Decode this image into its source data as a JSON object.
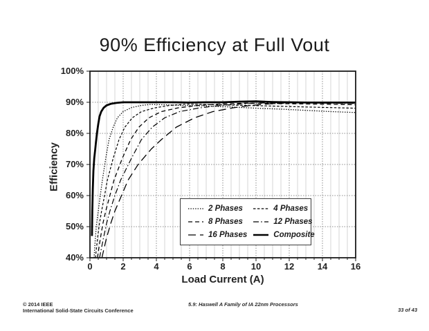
{
  "slide": {
    "title": "90% Efficiency at Full Vout",
    "footer": {
      "copyright": "© 2014 IEEE",
      "conference": "International Solid-State Circuits Conference",
      "paper": "5.9: Haswell A Family of IA 22nm Processors",
      "page": "33 of 43"
    }
  },
  "colors": {
    "curve": "#000000",
    "grid_minor": "#d5d5d5",
    "grid_major": "#8d8d8d",
    "axis_border": "#1a1a1a",
    "text": "#222222"
  },
  "chart_data": {
    "type": "line",
    "title": "90% Efficiency at Full Vout",
    "xlabel": "Load Current (A)",
    "ylabel": "Efficiency",
    "xlim": [
      0,
      16
    ],
    "ylim": [
      40,
      100
    ],
    "x_ticks": [
      0,
      2,
      4,
      6,
      8,
      10,
      12,
      14,
      16
    ],
    "x_minor_step": 0.5,
    "y_ticks": [
      40,
      50,
      60,
      70,
      80,
      90,
      100
    ],
    "y_tick_suffix": "%",
    "grid": "vertical minor light solid every 0.5A; major dotted every 2A and every 10%",
    "legend_position": "inside-bottom-center",
    "series": [
      {
        "name": "2 Phases",
        "dash": "1.4,2",
        "width": 1.3,
        "points": [
          [
            0.25,
            40
          ],
          [
            0.32,
            46
          ],
          [
            0.4,
            51
          ],
          [
            0.5,
            55
          ],
          [
            0.62,
            60
          ],
          [
            0.75,
            65
          ],
          [
            0.95,
            72
          ],
          [
            1.15,
            78
          ],
          [
            1.4,
            82
          ],
          [
            1.65,
            85
          ],
          [
            2.0,
            87
          ],
          [
            2.5,
            88.3
          ],
          [
            3.1,
            89
          ],
          [
            3.6,
            89.3
          ],
          [
            4.5,
            89.2
          ],
          [
            5.5,
            89
          ],
          [
            7.0,
            88.8
          ],
          [
            8.5,
            88.5
          ],
          [
            10.0,
            88.1
          ],
          [
            11.5,
            87.8
          ],
          [
            13.0,
            87.4
          ],
          [
            14.5,
            87
          ],
          [
            16.0,
            86.7
          ]
        ]
      },
      {
        "name": "4 Phases",
        "dash": "3.5,2.4",
        "width": 1.2,
        "points": [
          [
            0.33,
            40
          ],
          [
            0.45,
            46
          ],
          [
            0.57,
            51
          ],
          [
            0.7,
            55
          ],
          [
            0.88,
            60
          ],
          [
            1.05,
            65
          ],
          [
            1.4,
            72
          ],
          [
            1.75,
            78
          ],
          [
            2.1,
            82
          ],
          [
            2.55,
            85
          ],
          [
            3.1,
            87
          ],
          [
            3.9,
            88.2
          ],
          [
            4.8,
            89
          ],
          [
            5.8,
            89.4
          ],
          [
            7.0,
            89.3
          ],
          [
            8.5,
            89.1
          ],
          [
            10.0,
            88.9
          ],
          [
            11.5,
            88.7
          ],
          [
            13.0,
            88.5
          ],
          [
            14.5,
            88.3
          ],
          [
            16.0,
            88.1
          ]
        ]
      },
      {
        "name": "8 Phases",
        "dash": "6,4",
        "width": 1.3,
        "points": [
          [
            0.45,
            40
          ],
          [
            0.62,
            46
          ],
          [
            0.78,
            51
          ],
          [
            0.95,
            55
          ],
          [
            1.2,
            60
          ],
          [
            1.45,
            65
          ],
          [
            1.95,
            72
          ],
          [
            2.45,
            78
          ],
          [
            2.95,
            82
          ],
          [
            3.55,
            85
          ],
          [
            4.3,
            87
          ],
          [
            5.3,
            88.2
          ],
          [
            6.5,
            89
          ],
          [
            8.0,
            89.5
          ],
          [
            9.5,
            89.7
          ],
          [
            11.0,
            89.6
          ],
          [
            12.5,
            89.5
          ],
          [
            14.0,
            89.4
          ],
          [
            16.0,
            89.2
          ]
        ]
      },
      {
        "name": "12 Phases",
        "dash": "8,3.2,1.6,3.2",
        "width": 1.2,
        "points": [
          [
            0.58,
            40
          ],
          [
            0.8,
            46
          ],
          [
            1.0,
            51
          ],
          [
            1.2,
            55
          ],
          [
            1.5,
            60
          ],
          [
            1.85,
            65
          ],
          [
            2.5,
            72
          ],
          [
            3.1,
            78
          ],
          [
            3.75,
            82
          ],
          [
            4.5,
            85
          ],
          [
            5.4,
            87
          ],
          [
            6.6,
            88.2
          ],
          [
            7.9,
            89
          ],
          [
            9.2,
            89.5
          ],
          [
            10.5,
            89.8
          ],
          [
            11.5,
            89.9
          ],
          [
            13.0,
            89.8
          ],
          [
            14.5,
            89.7
          ],
          [
            16.0,
            89.6
          ]
        ]
      },
      {
        "name": "16 Phases",
        "dash": "11,6",
        "width": 1.3,
        "points": [
          [
            0.72,
            40
          ],
          [
            0.98,
            46
          ],
          [
            1.25,
            51
          ],
          [
            1.5,
            55
          ],
          [
            1.9,
            60
          ],
          [
            2.3,
            65
          ],
          [
            2.9,
            70
          ],
          [
            3.7,
            75
          ],
          [
            4.3,
            78
          ],
          [
            5.2,
            82
          ],
          [
            6.3,
            85
          ],
          [
            7.4,
            87
          ],
          [
            8.6,
            88.2
          ],
          [
            9.7,
            89
          ],
          [
            10.8,
            89.5
          ],
          [
            12.0,
            89.8
          ],
          [
            13.5,
            89.8
          ],
          [
            15.0,
            89.7
          ],
          [
            16.0,
            89.7
          ]
        ]
      },
      {
        "name": "Composite",
        "dash": "",
        "width": 2.8,
        "points": [
          [
            0.12,
            47
          ],
          [
            0.14,
            55
          ],
          [
            0.17,
            62
          ],
          [
            0.21,
            68
          ],
          [
            0.26,
            72
          ],
          [
            0.32,
            75
          ],
          [
            0.36,
            77
          ],
          [
            0.42,
            80
          ],
          [
            0.5,
            83
          ],
          [
            0.58,
            85.5
          ],
          [
            0.68,
            87
          ],
          [
            0.82,
            88.2
          ],
          [
            1.0,
            89
          ],
          [
            1.25,
            89.5
          ],
          [
            1.6,
            89.8
          ],
          [
            2.0,
            90
          ],
          [
            3.0,
            90
          ],
          [
            4.0,
            90
          ],
          [
            5.0,
            90
          ],
          [
            6.0,
            89.9
          ],
          [
            7.0,
            90
          ],
          [
            8.0,
            90
          ],
          [
            9.0,
            90.2
          ],
          [
            10.0,
            90.3
          ],
          [
            11.0,
            90.1
          ],
          [
            12.0,
            90
          ],
          [
            13.0,
            89.9
          ],
          [
            14.0,
            89.9
          ],
          [
            15.0,
            89.9
          ],
          [
            16.0,
            89.9
          ]
        ]
      }
    ]
  }
}
